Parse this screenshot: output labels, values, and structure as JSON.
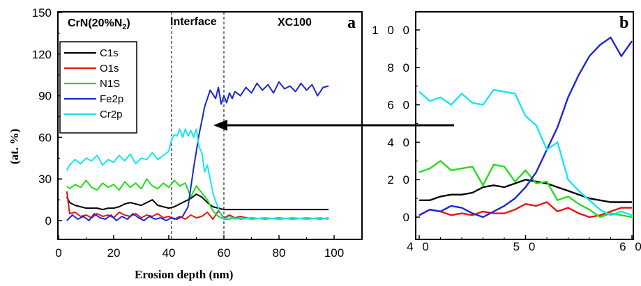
{
  "chart_data": [
    {
      "panel_letter": "a",
      "type": "line",
      "xlabel": "Erosion depth (nm)",
      "ylabel": "(at. %)",
      "xlim": [
        0,
        110
      ],
      "ylim": [
        -5,
        150
      ],
      "xticks": [
        "0",
        "20",
        "40",
        "60",
        "80",
        "100"
      ],
      "yticks": [
        "0",
        "30",
        "60",
        "90",
        "120",
        "150"
      ],
      "region_labels": {
        "left_main": "CrN(20%N",
        "left_sub": "2",
        "left_close": ")",
        "middle": "Interface",
        "right": "XC100"
      },
      "guide_lines_x": [
        41,
        60
      ],
      "legend": {
        "placement": "upper-left",
        "entries": [
          "C1s",
          "O1s",
          "N1S",
          "Fe2p",
          "Cr2p"
        ]
      },
      "series": [
        {
          "name": "C1s",
          "color": "#000000",
          "x": [
            3,
            4,
            6,
            8,
            10,
            12,
            14,
            16,
            18,
            20,
            22,
            24,
            26,
            28,
            30,
            32,
            34,
            36,
            38,
            40,
            42,
            44,
            46,
            48,
            50,
            52,
            54,
            56,
            58,
            60,
            62,
            66,
            70,
            75,
            80,
            85,
            90,
            95,
            98
          ],
          "y": [
            17,
            13,
            11,
            10,
            9,
            9,
            9,
            8,
            9,
            9,
            10,
            12,
            13,
            12,
            11,
            13,
            15,
            11,
            10,
            9,
            10,
            12,
            14,
            16,
            19,
            17,
            13,
            10,
            9,
            8,
            8,
            8,
            8,
            8,
            8,
            8,
            8,
            8,
            8
          ]
        },
        {
          "name": "O1s",
          "color": "#e8130e",
          "x": [
            3,
            4,
            6,
            8,
            10,
            12,
            14,
            16,
            18,
            20,
            22,
            24,
            26,
            28,
            30,
            32,
            34,
            36,
            38,
            40,
            42,
            44,
            46,
            48,
            50,
            52,
            54,
            56,
            58,
            60,
            62,
            64,
            66,
            70,
            75,
            80,
            85,
            90,
            95,
            98
          ],
          "y": [
            21,
            5,
            6,
            3,
            4,
            2,
            5,
            3,
            4,
            2,
            6,
            4,
            3,
            5,
            2,
            4,
            3,
            5,
            2,
            3,
            1,
            3,
            1,
            4,
            2,
            3,
            6,
            1,
            7,
            2,
            4,
            2,
            3,
            1,
            2,
            1,
            2,
            1,
            2,
            1
          ]
        },
        {
          "name": "N1S",
          "color": "#22dd1e",
          "x": [
            3,
            4,
            6,
            8,
            10,
            12,
            14,
            16,
            18,
            20,
            22,
            24,
            26,
            28,
            30,
            32,
            34,
            36,
            38,
            40,
            42,
            44,
            46,
            48,
            50,
            52,
            54,
            56,
            58,
            60,
            62,
            64,
            66,
            70,
            75,
            80,
            85,
            90,
            95,
            98
          ],
          "y": [
            25,
            23,
            26,
            24,
            29,
            24,
            22,
            27,
            24,
            26,
            22,
            28,
            24,
            27,
            23,
            30,
            25,
            23,
            27,
            24,
            29,
            25,
            27,
            17,
            25,
            20,
            15,
            7,
            3,
            1,
            1,
            2,
            1,
            2,
            1,
            2,
            1,
            2,
            1,
            2
          ]
        },
        {
          "name": "Fe2p",
          "color": "#1a26d8",
          "x": [
            3,
            5,
            7,
            9,
            11,
            13,
            15,
            17,
            19,
            21,
            23,
            25,
            27,
            29,
            31,
            33,
            35,
            37,
            39,
            41,
            43,
            45,
            47,
            49,
            51,
            53,
            55,
            57,
            58,
            59,
            60,
            61,
            62,
            63,
            64,
            66,
            68,
            70,
            72,
            74,
            76,
            78,
            80,
            82,
            84,
            86,
            88,
            90,
            92,
            94,
            96,
            98
          ],
          "y": [
            0,
            4,
            1,
            3,
            0,
            5,
            2,
            1,
            4,
            0,
            3,
            1,
            5,
            2,
            0,
            3,
            1,
            2,
            0,
            2,
            1,
            3,
            10,
            38,
            62,
            82,
            94,
            88,
            96,
            84,
            90,
            85,
            92,
            88,
            93,
            90,
            96,
            92,
            99,
            94,
            98,
            92,
            100,
            95,
            97,
            93,
            99,
            94,
            98,
            90,
            96,
            97
          ]
        },
        {
          "name": "Cr2p",
          "color": "#16e6f0",
          "x": [
            3,
            4,
            6,
            8,
            10,
            12,
            14,
            16,
            18,
            20,
            22,
            24,
            26,
            28,
            30,
            32,
            34,
            36,
            38,
            40,
            41,
            42,
            43,
            44,
            45,
            46,
            47,
            48,
            49,
            50,
            51,
            52,
            53,
            54,
            55,
            56,
            57,
            58,
            59,
            60,
            62,
            64,
            66,
            70,
            75,
            80,
            85,
            90,
            95,
            98
          ],
          "y": [
            36,
            40,
            44,
            41,
            45,
            43,
            47,
            40,
            44,
            42,
            47,
            43,
            48,
            41,
            45,
            44,
            49,
            44,
            47,
            50,
            58,
            62,
            61,
            66,
            60,
            66,
            61,
            65,
            60,
            66,
            53,
            49,
            35,
            40,
            30,
            20,
            14,
            9,
            4,
            1,
            3,
            1,
            2,
            1,
            2,
            1,
            2,
            1,
            2,
            1
          ]
        }
      ],
      "annotation_arrow": {
        "from_x": 55,
        "from_y": 68,
        "direction": "from panel b toward panel a"
      }
    },
    {
      "panel_letter": "b",
      "type": "line",
      "xlim": [
        40,
        60
      ],
      "ylim": [
        -5,
        110
      ],
      "xticks": [
        "40",
        "50",
        "60"
      ],
      "yticks": [
        "0",
        "20",
        "40",
        "60",
        "80",
        "100"
      ],
      "series": [
        {
          "name": "C1s",
          "color": "#000000",
          "x": [
            40,
            41,
            42,
            43,
            44,
            45,
            46,
            47,
            48,
            49,
            50,
            51,
            52,
            53,
            54,
            55,
            56,
            57,
            58,
            59,
            60
          ],
          "y": [
            9,
            9,
            11,
            12,
            12,
            13,
            16,
            17,
            16,
            18,
            20,
            19,
            18,
            16,
            14,
            12,
            10,
            9,
            8,
            8,
            8
          ]
        },
        {
          "name": "O1s",
          "color": "#e8130e",
          "x": [
            40,
            41,
            42,
            43,
            44,
            45,
            46,
            47,
            48,
            49,
            50,
            51,
            52,
            53,
            54,
            55,
            56,
            57,
            58,
            59,
            60
          ],
          "y": [
            1,
            4,
            3,
            1,
            2,
            1,
            3,
            2,
            2,
            4,
            7,
            6,
            8,
            3,
            5,
            2,
            0,
            1,
            3,
            5,
            5
          ]
        },
        {
          "name": "N1S",
          "color": "#22dd1e",
          "x": [
            40,
            41,
            42,
            43,
            44,
            45,
            46,
            47,
            48,
            49,
            50,
            51,
            52,
            53,
            54,
            55,
            56,
            57,
            58,
            59,
            60
          ],
          "y": [
            24,
            26,
            30,
            25,
            26,
            27,
            17,
            28,
            27,
            19,
            25,
            18,
            19,
            9,
            11,
            7,
            4,
            0,
            2,
            1,
            0
          ]
        },
        {
          "name": "Fe2p",
          "color": "#1a26d8",
          "x": [
            40,
            41,
            42,
            43,
            44,
            45,
            46,
            47,
            48,
            49,
            50,
            51,
            52,
            53,
            54,
            55,
            56,
            57,
            58,
            59,
            60
          ],
          "y": [
            1,
            4,
            3,
            6,
            5,
            2,
            0,
            3,
            6,
            10,
            16,
            24,
            36,
            48,
            64,
            76,
            86,
            92,
            96,
            86,
            94
          ]
        },
        {
          "name": "Cr2p",
          "color": "#16e6f0",
          "x": [
            40,
            41,
            42,
            43,
            44,
            45,
            46,
            47,
            48,
            49,
            50,
            51,
            52,
            53,
            54,
            55,
            56,
            57,
            58,
            59,
            60
          ],
          "y": [
            67,
            62,
            64,
            60,
            66,
            61,
            60,
            68,
            67,
            66,
            54,
            49,
            36,
            40,
            20,
            14,
            9,
            4,
            1,
            3,
            1
          ]
        }
      ]
    }
  ]
}
